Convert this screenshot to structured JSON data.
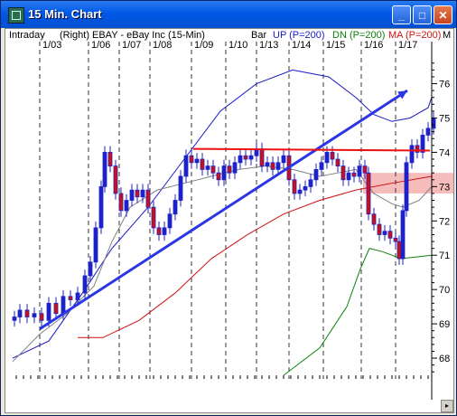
{
  "window": {
    "title": "15 Min. Chart",
    "buttons": {
      "minimize": "_",
      "maximize": "□",
      "close": "✕"
    }
  },
  "header": {
    "mode": "Intraday",
    "axis": "(Right)",
    "symbol_desc": "EBAY - eBay Inc (15-Min)",
    "chart_style": "Bar",
    "up_label": "UP (P=200)",
    "dn_label": "DN (P=200)",
    "ma_label": "MA (P=200)",
    "overflow": "M"
  },
  "colors": {
    "price_bar": "#1c22c8",
    "down_fill": "#d01010",
    "upper_band": "#1818c8",
    "lower_band": "#108010",
    "ma": "#d01010",
    "short_ma": "#808080",
    "trendline": "#2a36e6",
    "resistance": "#ee1111",
    "highlight": "#f4b0b0"
  },
  "chart_data": {
    "type": "line",
    "x_tick_labels": [
      "1/03",
      "1/06",
      "1/07",
      "1/08",
      "1/09",
      "1/10",
      "1/13",
      "1/14",
      "1/15",
      "1/16",
      "1/17"
    ],
    "y_tick_labels": [
      "68",
      "69",
      "70",
      "71",
      "72",
      "73",
      "74",
      "75",
      "76"
    ],
    "ylim": [
      67.5,
      76.7
    ],
    "price_close": [
      [
        0,
        69.2
      ],
      [
        6,
        69.4
      ],
      [
        14,
        69.2
      ],
      [
        22,
        69.3
      ],
      [
        30,
        69.1
      ],
      [
        38,
        69.6
      ],
      [
        46,
        69.3
      ],
      [
        54,
        69.8
      ],
      [
        62,
        69.7
      ],
      [
        70,
        69.9
      ],
      [
        78,
        70.4
      ],
      [
        84,
        70.8
      ],
      [
        90,
        71.8
      ],
      [
        96,
        73.0
      ],
      [
        100,
        74.0
      ],
      [
        106,
        73.6
      ],
      [
        112,
        72.8
      ],
      [
        118,
        72.3
      ],
      [
        124,
        72.6
      ],
      [
        130,
        72.9
      ],
      [
        136,
        72.7
      ],
      [
        142,
        72.9
      ],
      [
        148,
        72.4
      ],
      [
        154,
        71.8
      ],
      [
        160,
        71.6
      ],
      [
        166,
        71.8
      ],
      [
        172,
        72.2
      ],
      [
        178,
        72.6
      ],
      [
        184,
        73.3
      ],
      [
        190,
        73.9
      ],
      [
        196,
        73.7
      ],
      [
        202,
        73.8
      ],
      [
        208,
        73.5
      ],
      [
        214,
        73.6
      ],
      [
        220,
        73.4
      ],
      [
        226,
        73.2
      ],
      [
        232,
        73.6
      ],
      [
        238,
        73.4
      ],
      [
        244,
        73.7
      ],
      [
        250,
        73.9
      ],
      [
        256,
        73.8
      ],
      [
        262,
        73.9
      ],
      [
        268,
        74.1
      ],
      [
        274,
        73.6
      ],
      [
        280,
        73.7
      ],
      [
        286,
        73.5
      ],
      [
        292,
        73.7
      ],
      [
        298,
        73.9
      ],
      [
        304,
        73.2
      ],
      [
        310,
        72.8
      ],
      [
        316,
        72.9
      ],
      [
        322,
        73.0
      ],
      [
        328,
        73.2
      ],
      [
        334,
        73.5
      ],
      [
        340,
        73.7
      ],
      [
        346,
        74.0
      ],
      [
        352,
        73.8
      ],
      [
        358,
        73.6
      ],
      [
        364,
        73.2
      ],
      [
        370,
        73.4
      ],
      [
        376,
        73.3
      ],
      [
        382,
        73.6
      ],
      [
        388,
        73.4
      ],
      [
        392,
        72.2
      ],
      [
        398,
        71.9
      ],
      [
        404,
        71.6
      ],
      [
        410,
        71.7
      ],
      [
        416,
        71.5
      ],
      [
        422,
        71.4
      ],
      [
        426,
        70.9
      ],
      [
        430,
        72.3
      ],
      [
        434,
        73.7
      ],
      [
        440,
        74.2
      ],
      [
        446,
        74.0
      ],
      [
        452,
        74.5
      ],
      [
        458,
        74.7
      ],
      [
        464,
        75.0
      ]
    ],
    "upper_band": [
      [
        0,
        68.0
      ],
      [
        40,
        68.5
      ],
      [
        80,
        70.0
      ],
      [
        110,
        71.2
      ],
      [
        150,
        72.4
      ],
      [
        190,
        73.8
      ],
      [
        230,
        75.2
      ],
      [
        270,
        76.0
      ],
      [
        310,
        76.4
      ],
      [
        350,
        76.2
      ],
      [
        380,
        75.6
      ],
      [
        400,
        75.1
      ],
      [
        420,
        74.9
      ],
      [
        440,
        75.0
      ],
      [
        460,
        75.3
      ],
      [
        464,
        75.6
      ]
    ],
    "lower_band": [
      [
        300,
        67.5
      ],
      [
        340,
        68.3
      ],
      [
        370,
        69.5
      ],
      [
        385,
        70.6
      ],
      [
        395,
        71.2
      ],
      [
        410,
        71.1
      ],
      [
        430,
        70.9
      ],
      [
        464,
        71.0
      ]
    ],
    "ma": [
      [
        72,
        68.6
      ],
      [
        100,
        68.6
      ],
      [
        140,
        69.1
      ],
      [
        180,
        69.9
      ],
      [
        220,
        70.9
      ],
      [
        260,
        71.6
      ],
      [
        300,
        72.2
      ],
      [
        340,
        72.6
      ],
      [
        380,
        72.9
      ],
      [
        420,
        73.1
      ],
      [
        464,
        73.3
      ]
    ],
    "short_ma": [
      [
        0,
        67.9
      ],
      [
        30,
        68.7
      ],
      [
        60,
        69.3
      ],
      [
        90,
        70.1
      ],
      [
        110,
        71.4
      ],
      [
        130,
        72.4
      ],
      [
        160,
        72.9
      ],
      [
        190,
        73.1
      ],
      [
        220,
        73.3
      ],
      [
        250,
        73.5
      ],
      [
        280,
        73.6
      ],
      [
        310,
        73.5
      ],
      [
        340,
        73.3
      ],
      [
        360,
        73.4
      ],
      [
        380,
        73.5
      ],
      [
        400,
        72.8
      ],
      [
        420,
        72.5
      ],
      [
        432,
        72.4
      ],
      [
        450,
        72.6
      ],
      [
        464,
        73.0
      ]
    ],
    "trendline": {
      "from": [
        30,
        68.85
      ],
      "to": [
        437,
        75.8
      ]
    },
    "resistance": {
      "from": [
        200,
        74.1
      ],
      "to": [
        462,
        74.05
      ]
    },
    "highlight_band": {
      "from": 72.8,
      "to": 73.4
    }
  }
}
